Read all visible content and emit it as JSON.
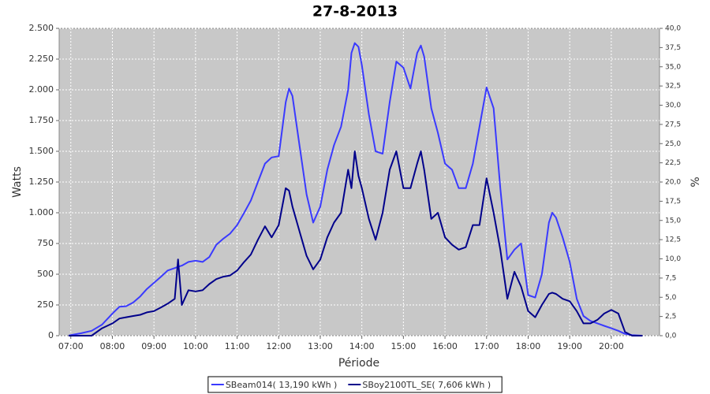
{
  "chart_data": {
    "type": "line",
    "title": "27-8-2013",
    "x_label": "Période",
    "y_label": "Watts",
    "y2_label": "%",
    "x": [
      6.95,
      7.0,
      7.25,
      7.5,
      7.75,
      8.0,
      8.17,
      8.33,
      8.5,
      8.67,
      8.83,
      9.0,
      9.17,
      9.33,
      9.5,
      9.58,
      9.67,
      9.83,
      10.0,
      10.17,
      10.33,
      10.5,
      10.67,
      10.83,
      11.0,
      11.17,
      11.33,
      11.5,
      11.67,
      11.83,
      12.0,
      12.17,
      12.25,
      12.33,
      12.5,
      12.67,
      12.83,
      13.0,
      13.17,
      13.33,
      13.5,
      13.67,
      13.75,
      13.83,
      13.92,
      14.0,
      14.17,
      14.33,
      14.5,
      14.67,
      14.83,
      15.0,
      15.17,
      15.33,
      15.42,
      15.5,
      15.67,
      15.83,
      16.0,
      16.17,
      16.33,
      16.5,
      16.67,
      16.83,
      17.0,
      17.17,
      17.33,
      17.5,
      17.67,
      17.83,
      18.0,
      18.17,
      18.33,
      18.5,
      18.58,
      18.67,
      18.83,
      19.0,
      19.17,
      19.33,
      19.5,
      19.67,
      19.83,
      20.0,
      20.17,
      20.33,
      20.5,
      20.75
    ],
    "series": [
      {
        "name": "SBeam014( 13,190 kWh )",
        "color": "#3a3aff",
        "values": [
          0,
          5,
          20,
          40,
          90,
          180,
          235,
          240,
          270,
          320,
          380,
          430,
          480,
          530,
          550,
          560,
          570,
          600,
          610,
          600,
          640,
          740,
          790,
          830,
          900,
          1000,
          1100,
          1250,
          1400,
          1450,
          1460,
          1900,
          2010,
          1950,
          1550,
          1150,
          920,
          1050,
          1350,
          1550,
          1700,
          2000,
          2300,
          2380,
          2350,
          2200,
          1800,
          1500,
          1480,
          1900,
          2230,
          2180,
          2010,
          2300,
          2360,
          2270,
          1850,
          1650,
          1400,
          1350,
          1200,
          1200,
          1400,
          1700,
          2020,
          1850,
          1200,
          620,
          700,
          750,
          330,
          310,
          500,
          920,
          1000,
          960,
          800,
          600,
          300,
          160,
          120,
          100,
          80,
          60,
          40,
          15,
          5,
          0
        ]
      },
      {
        "name": "SBoy2100TL_SE( 7,606 kWh )",
        "color": "#00008b",
        "values": [
          0,
          0,
          0,
          0,
          60,
          100,
          140,
          150,
          160,
          170,
          190,
          200,
          230,
          260,
          300,
          620,
          250,
          370,
          360,
          370,
          420,
          460,
          480,
          490,
          530,
          600,
          660,
          780,
          890,
          800,
          900,
          1200,
          1180,
          1050,
          850,
          650,
          540,
          620,
          800,
          920,
          1000,
          1350,
          1200,
          1500,
          1300,
          1200,
          950,
          780,
          1000,
          1350,
          1500,
          1200,
          1200,
          1400,
          1500,
          1350,
          950,
          1000,
          800,
          740,
          700,
          720,
          900,
          900,
          1280,
          1000,
          700,
          300,
          520,
          400,
          200,
          150,
          250,
          340,
          350,
          340,
          300,
          280,
          200,
          100,
          100,
          130,
          180,
          210,
          180,
          30,
          0,
          0
        ]
      }
    ],
    "xlim": [
      6.72,
      21.16
    ],
    "xticks": [
      {
        "value": 7,
        "label": "07:00"
      },
      {
        "value": 8,
        "label": "08:00"
      },
      {
        "value": 9,
        "label": "09:00"
      },
      {
        "value": 10,
        "label": "10:00"
      },
      {
        "value": 11,
        "label": "11:00"
      },
      {
        "value": 12,
        "label": "12:00"
      },
      {
        "value": 13,
        "label": "13:00"
      },
      {
        "value": 14,
        "label": "14:00"
      },
      {
        "value": 15,
        "label": "15:00"
      },
      {
        "value": 16,
        "label": "16:00"
      },
      {
        "value": 17,
        "label": "17:00"
      },
      {
        "value": 18,
        "label": "18:00"
      },
      {
        "value": 19,
        "label": "19:00"
      },
      {
        "value": 20,
        "label": "20:00"
      }
    ],
    "ylim": [
      0,
      2500
    ],
    "yticks": [
      0,
      250,
      500,
      750,
      {
        "value": 1000,
        "label": "1.000"
      },
      {
        "value": 1250,
        "label": "1.250"
      },
      {
        "value": 1500,
        "label": "1.500"
      },
      {
        "value": 1750,
        "label": "1.750"
      },
      {
        "value": 2000,
        "label": "2.000"
      },
      {
        "value": 2250,
        "label": "2.250"
      },
      {
        "value": 2500,
        "label": "2.500"
      }
    ],
    "y2lim": [
      0,
      40
    ],
    "y2ticks": [
      {
        "value": 0,
        "label": "0,0"
      },
      {
        "value": 2.5,
        "label": "2,5"
      },
      {
        "value": 5,
        "label": "5,0"
      },
      {
        "value": 7.5,
        "label": "7,5"
      },
      {
        "value": 10,
        "label": "10,0"
      },
      {
        "value": 12.5,
        "label": "12,5"
      },
      {
        "value": 15,
        "label": "15,0"
      },
      {
        "value": 17.5,
        "label": "17,5"
      },
      {
        "value": 20,
        "label": "20,0"
      },
      {
        "value": 22.5,
        "label": "22,5"
      },
      {
        "value": 25,
        "label": "25,0"
      },
      {
        "value": 27.5,
        "label": "27,5"
      },
      {
        "value": 30,
        "label": "30,0"
      },
      {
        "value": 32.5,
        "label": "32,5"
      },
      {
        "value": 35,
        "label": "35,0"
      },
      {
        "value": 37.5,
        "label": "37,5"
      },
      {
        "value": 40,
        "label": "40,0"
      }
    ],
    "grid": true,
    "legend": "bottom"
  }
}
